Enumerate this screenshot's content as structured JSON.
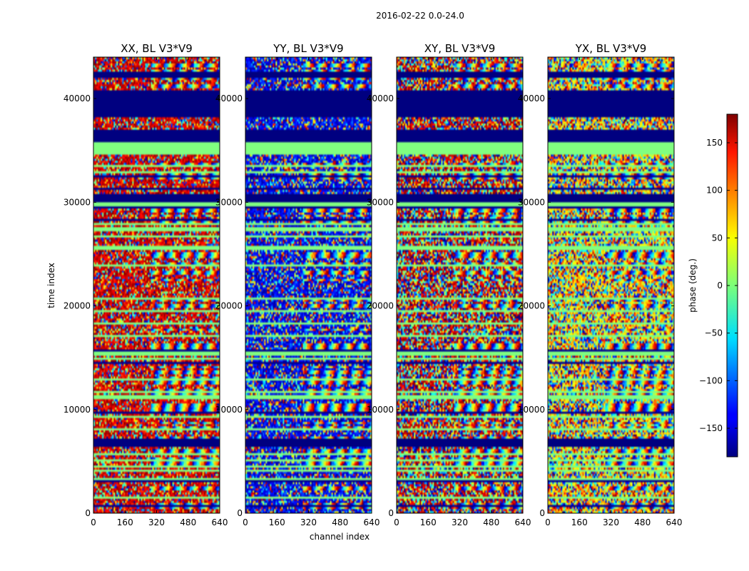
{
  "figure": {
    "suptitle": "2016-02-22 0.0-24.0"
  },
  "chart_data": {
    "type": "heatmap",
    "title": "2016-02-22 0.0-24.0",
    "xlabel": "channel index",
    "ylabel": "time index",
    "xlim": [
      0,
      640
    ],
    "ylim": [
      0,
      44000
    ],
    "x_ticks": [
      0,
      160,
      320,
      480,
      640
    ],
    "y_ticks": [
      0,
      10000,
      20000,
      30000,
      40000
    ],
    "colormap": "jet",
    "colorbar": {
      "label": "phase (deg.)",
      "range": [
        -180,
        180
      ],
      "ticks": [
        -150,
        -100,
        -50,
        0,
        50,
        100,
        150
      ],
      "tick_labels": [
        "−150",
        "−100",
        "−50",
        "0",
        "50",
        "100",
        "150"
      ]
    },
    "panels": [
      {
        "title": "XX, BL V3*V9",
        "polarization": "XX",
        "baseline": "V3*V9",
        "phase_bias_deg": 150,
        "bias_strength": 0.55
      },
      {
        "title": "YY, BL V3*V9",
        "polarization": "YY",
        "baseline": "V3*V9",
        "phase_bias_deg": -140,
        "bias_strength": 0.55
      },
      {
        "title": "XY, BL V3*V9",
        "polarization": "XY",
        "baseline": "V3*V9",
        "phase_bias_deg": 160,
        "bias_strength": 0.3
      },
      {
        "title": "YX, BL V3*V9",
        "polarization": "YX",
        "baseline": "V3*V9",
        "phase_bias_deg": 60,
        "bias_strength": 0.25
      }
    ],
    "flagged_time_ranges": [
      {
        "start": 6500,
        "end": 7200,
        "phase_deg": -180
      },
      {
        "start": 34700,
        "end": 35900,
        "phase_deg": 0
      },
      {
        "start": 35900,
        "end": 36900,
        "phase_deg": -180
      },
      {
        "start": 38300,
        "end": 40800,
        "phase_deg": -180
      },
      {
        "start": 30000,
        "end": 30700,
        "phase_deg": -180
      },
      {
        "start": 42000,
        "end": 42500,
        "phase_deg": -180
      }
    ]
  }
}
